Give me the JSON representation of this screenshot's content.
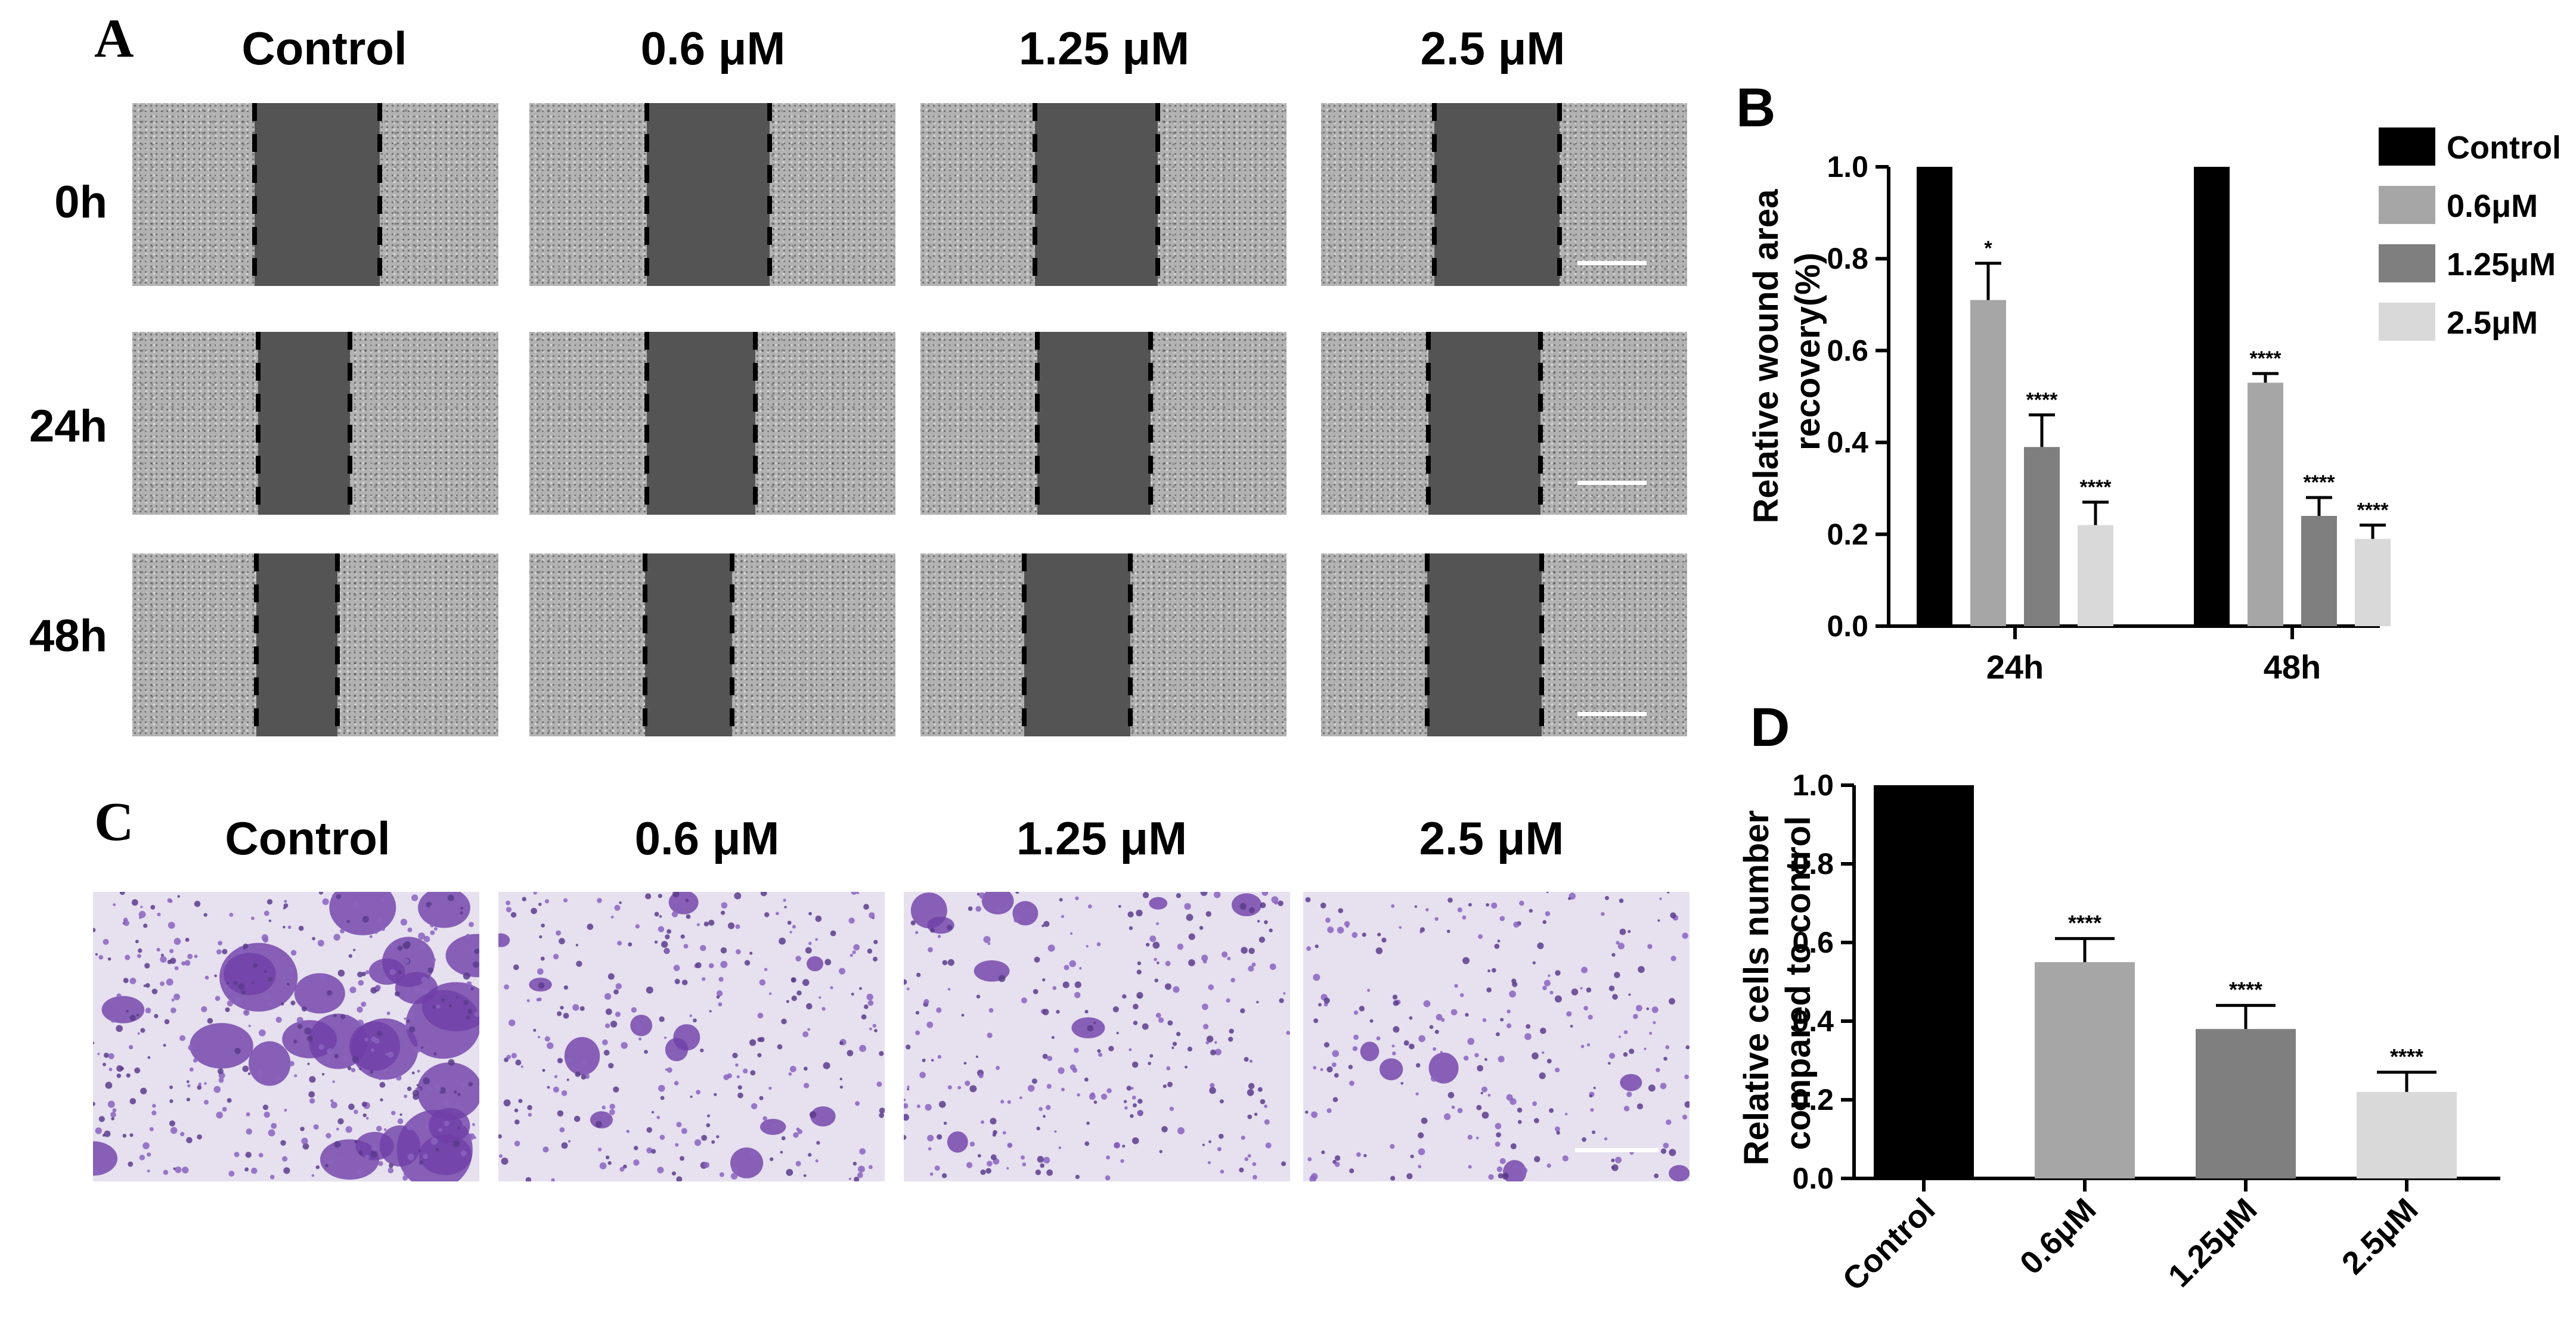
{
  "panels": {
    "A": {
      "letter": "A",
      "columns": [
        "Control",
        "0.6 μM",
        "1.25 μM",
        "2.5 μM"
      ],
      "rows": [
        "0h",
        "24h",
        "48h"
      ]
    },
    "C": {
      "letter": "C",
      "columns": [
        "Control",
        "0.6 μM",
        "1.25 μM",
        "2.5 μM"
      ]
    }
  },
  "chart_data": [
    {
      "panel": "B",
      "type": "bar",
      "categories": [
        "24h",
        "48h"
      ],
      "series": [
        {
          "name": "Control",
          "color": "#000000",
          "values": [
            1.0,
            1.0
          ],
          "errors": [
            0,
            0
          ],
          "significance": [
            "",
            ""
          ]
        },
        {
          "name": "0.6μM",
          "color": "#a6a6a6",
          "values": [
            0.71,
            0.53
          ],
          "errors": [
            0.08,
            0.02
          ],
          "significance": [
            "*",
            "****"
          ]
        },
        {
          "name": "1.25μM",
          "color": "#7f7f7f",
          "values": [
            0.39,
            0.24
          ],
          "errors": [
            0.07,
            0.04
          ],
          "significance": [
            "****",
            "****"
          ]
        },
        {
          "name": "2.5μM",
          "color": "#d9d9d9",
          "values": [
            0.22,
            0.19
          ],
          "errors": [
            0.05,
            0.03
          ],
          "significance": [
            "****",
            "****"
          ]
        }
      ],
      "ylabel": "Relative wound area recovery(%)",
      "ylabel_lines": [
        "Relative wound area",
        "recovery(%)"
      ],
      "ylim": [
        0,
        1.0
      ],
      "yticks": [
        "0.0",
        "0.2",
        "0.4",
        "0.6",
        "0.8",
        "1.0"
      ],
      "legend": "top-right"
    },
    {
      "panel": "D",
      "type": "bar",
      "categories": [
        "Control",
        "0.6μM",
        "1.25μM",
        "2.5μM"
      ],
      "colors": [
        "#000000",
        "#a6a6a6",
        "#7f7f7f",
        "#d9d9d9"
      ],
      "values": [
        1.0,
        0.55,
        0.38,
        0.22
      ],
      "errors": [
        0,
        0.06,
        0.06,
        0.05
      ],
      "significance": [
        "",
        "****",
        "****",
        "****"
      ],
      "ylabel": "Relative cells number compared to control",
      "ylabel_lines": [
        "Relative cells number",
        "compared to control"
      ],
      "ylim": [
        0,
        1.0
      ],
      "yticks": [
        "0.0",
        "0.2",
        "0.4",
        "0.6",
        "0.8",
        "1.0"
      ]
    }
  ]
}
